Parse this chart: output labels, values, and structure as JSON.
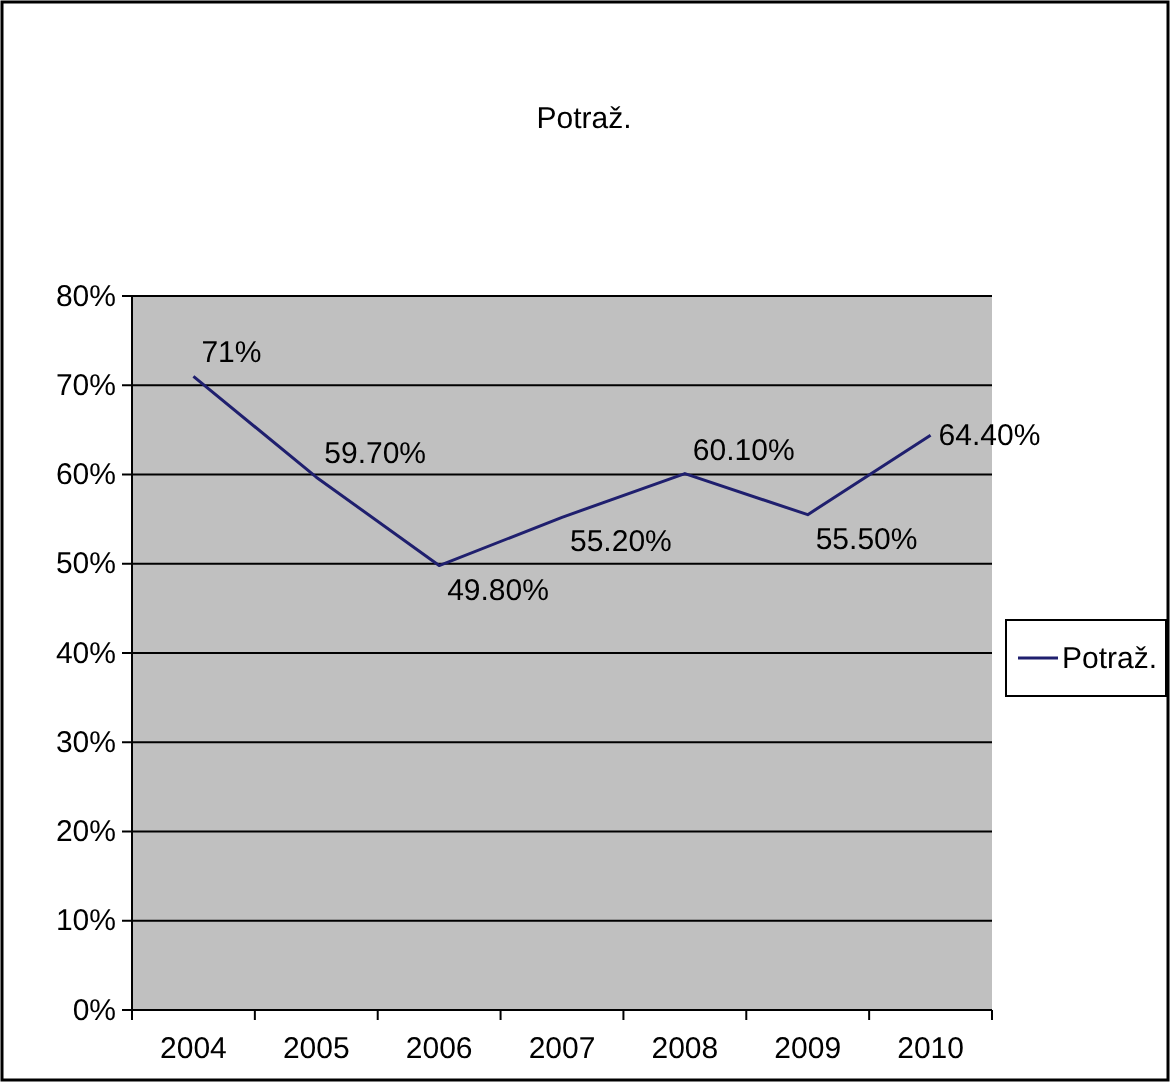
{
  "chart_data": {
    "type": "line",
    "title": "Potraž.",
    "categories": [
      "2004",
      "2005",
      "2006",
      "2007",
      "2008",
      "2009",
      "2010"
    ],
    "series": [
      {
        "name": "Potraž.",
        "color": "#1f1f6e",
        "values": [
          71,
          59.7,
          49.8,
          55.2,
          60.1,
          55.5,
          64.4
        ],
        "value_labels": [
          "71%",
          "59.70%",
          "49.80%",
          "55.20%",
          "60.10%",
          "55.50%",
          "64.40%"
        ]
      }
    ],
    "ylim": [
      0,
      80
    ],
    "yticks": [
      {
        "value": 0,
        "label": "0%"
      },
      {
        "value": 10,
        "label": "10%"
      },
      {
        "value": 20,
        "label": "20%"
      },
      {
        "value": 30,
        "label": "30%"
      },
      {
        "value": 40,
        "label": "40%"
      },
      {
        "value": 50,
        "label": "50%"
      },
      {
        "value": 60,
        "label": "60%"
      },
      {
        "value": 70,
        "label": "70%"
      },
      {
        "value": 80,
        "label": "80%"
      }
    ],
    "grid": "y",
    "legend": "right",
    "marker": "none",
    "line_style": "solid"
  }
}
